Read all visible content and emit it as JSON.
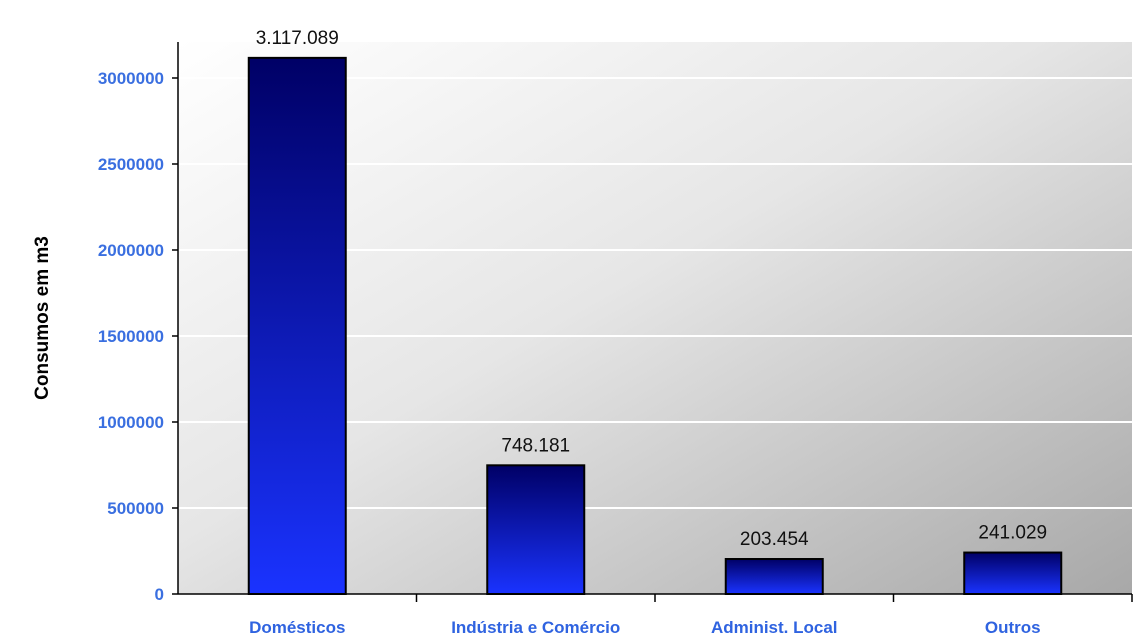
{
  "chart_data": {
    "type": "bar",
    "categories": [
      "Domésticos",
      "Indústria e Comércio",
      "Administ. Local",
      "Outros"
    ],
    "values": [
      3117089,
      748181,
      203454,
      241029
    ],
    "data_labels": [
      "3.117.089",
      "748.181",
      "203.454",
      "241.029"
    ],
    "ylabel": "Consumos em m3",
    "ylim": [
      0,
      3000000
    ],
    "yticks": [
      "0",
      "500000",
      "1000000",
      "1500000",
      "2000000",
      "2500000",
      "3000000"
    ],
    "grid": true,
    "legend": "none",
    "colors": {
      "bar_top": "#000066",
      "bar_bottom": "#1a33ff",
      "tick": "#3a6fe0"
    }
  }
}
